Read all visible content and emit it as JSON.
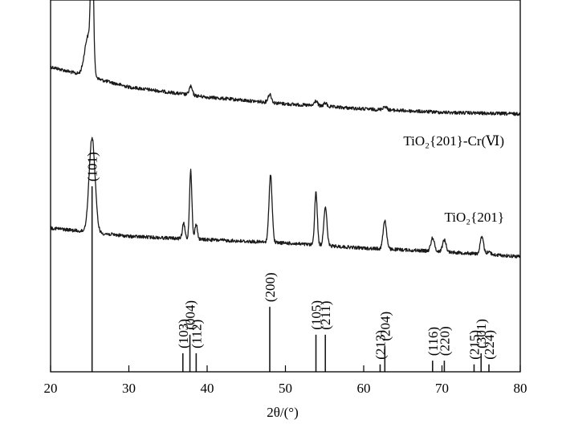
{
  "chart_data": {
    "type": "line",
    "xlabel": "2θ/(°)",
    "xlim": [
      20,
      80
    ],
    "xticks": [
      20,
      30,
      40,
      50,
      60,
      70,
      80
    ],
    "colors": {
      "trace": "#1a1a1a"
    },
    "series": [
      {
        "name": "TiO₂{201}-Cr(Ⅵ)",
        "baseline": [
          [
            20,
            0.58
          ],
          [
            30,
            0.46
          ],
          [
            40,
            0.4
          ],
          [
            50,
            0.36
          ],
          [
            60,
            0.33
          ],
          [
            70,
            0.31
          ],
          [
            80,
            0.3
          ]
        ],
        "peaks": [
          {
            "x": 24.8,
            "h": 0.24,
            "w": 0.45
          },
          {
            "x": 25.3,
            "h": 0.91,
            "w": 0.16
          },
          {
            "x": 37.9,
            "h": 0.05,
            "w": 0.2
          },
          {
            "x": 48.0,
            "h": 0.05,
            "w": 0.22
          },
          {
            "x": 53.9,
            "h": 0.03,
            "w": 0.2
          },
          {
            "x": 55.1,
            "h": 0.02,
            "w": 0.2
          },
          {
            "x": 62.7,
            "h": 0.02,
            "w": 0.25
          }
        ]
      },
      {
        "name": "TiO₂{201}",
        "baseline": [
          [
            20,
            0.22
          ],
          [
            30,
            0.17
          ],
          [
            40,
            0.15
          ],
          [
            50,
            0.13
          ],
          [
            60,
            0.1
          ],
          [
            70,
            0.08
          ],
          [
            80,
            0.05
          ]
        ],
        "peaks": [
          {
            "x": 25.3,
            "h": 0.56,
            "w": 0.38
          },
          {
            "x": 37.0,
            "h": 0.09,
            "w": 0.16
          },
          {
            "x": 37.9,
            "h": 0.41,
            "w": 0.15
          },
          {
            "x": 38.6,
            "h": 0.09,
            "w": 0.16
          },
          {
            "x": 48.1,
            "h": 0.4,
            "w": 0.2
          },
          {
            "x": 53.9,
            "h": 0.31,
            "w": 0.17
          },
          {
            "x": 55.1,
            "h": 0.23,
            "w": 0.2
          },
          {
            "x": 62.7,
            "h": 0.17,
            "w": 0.22
          },
          {
            "x": 68.8,
            "h": 0.08,
            "w": 0.22
          },
          {
            "x": 70.3,
            "h": 0.07,
            "w": 0.22
          },
          {
            "x": 75.1,
            "h": 0.1,
            "w": 0.22
          },
          {
            "x": 76.0,
            "h": 0.02,
            "w": 0.2
          }
        ]
      }
    ],
    "reference_lines": [
      {
        "hkl": "(101)",
        "x": 25.3,
        "intensity": 1.0
      },
      {
        "hkl": "(103)",
        "x": 36.9,
        "intensity": 0.1
      },
      {
        "hkl": "(004)",
        "x": 37.8,
        "intensity": 0.2
      },
      {
        "hkl": "(112)",
        "x": 38.6,
        "intensity": 0.1
      },
      {
        "hkl": "(200)",
        "x": 48.0,
        "intensity": 0.35
      },
      {
        "hkl": "(105)",
        "x": 53.9,
        "intensity": 0.2
      },
      {
        "hkl": "(211)",
        "x": 55.1,
        "intensity": 0.2
      },
      {
        "hkl": "(213)",
        "x": 62.1,
        "intensity": 0.04
      },
      {
        "hkl": "(204)",
        "x": 62.7,
        "intensity": 0.14
      },
      {
        "hkl": "(116)",
        "x": 68.8,
        "intensity": 0.06
      },
      {
        "hkl": "(220)",
        "x": 70.3,
        "intensity": 0.06
      },
      {
        "hkl": "(215)",
        "x": 74.1,
        "intensity": 0.04
      },
      {
        "hkl": "(301)",
        "x": 75.0,
        "intensity": 0.1
      },
      {
        "hkl": "(224)",
        "x": 76.0,
        "intensity": 0.04
      }
    ]
  }
}
